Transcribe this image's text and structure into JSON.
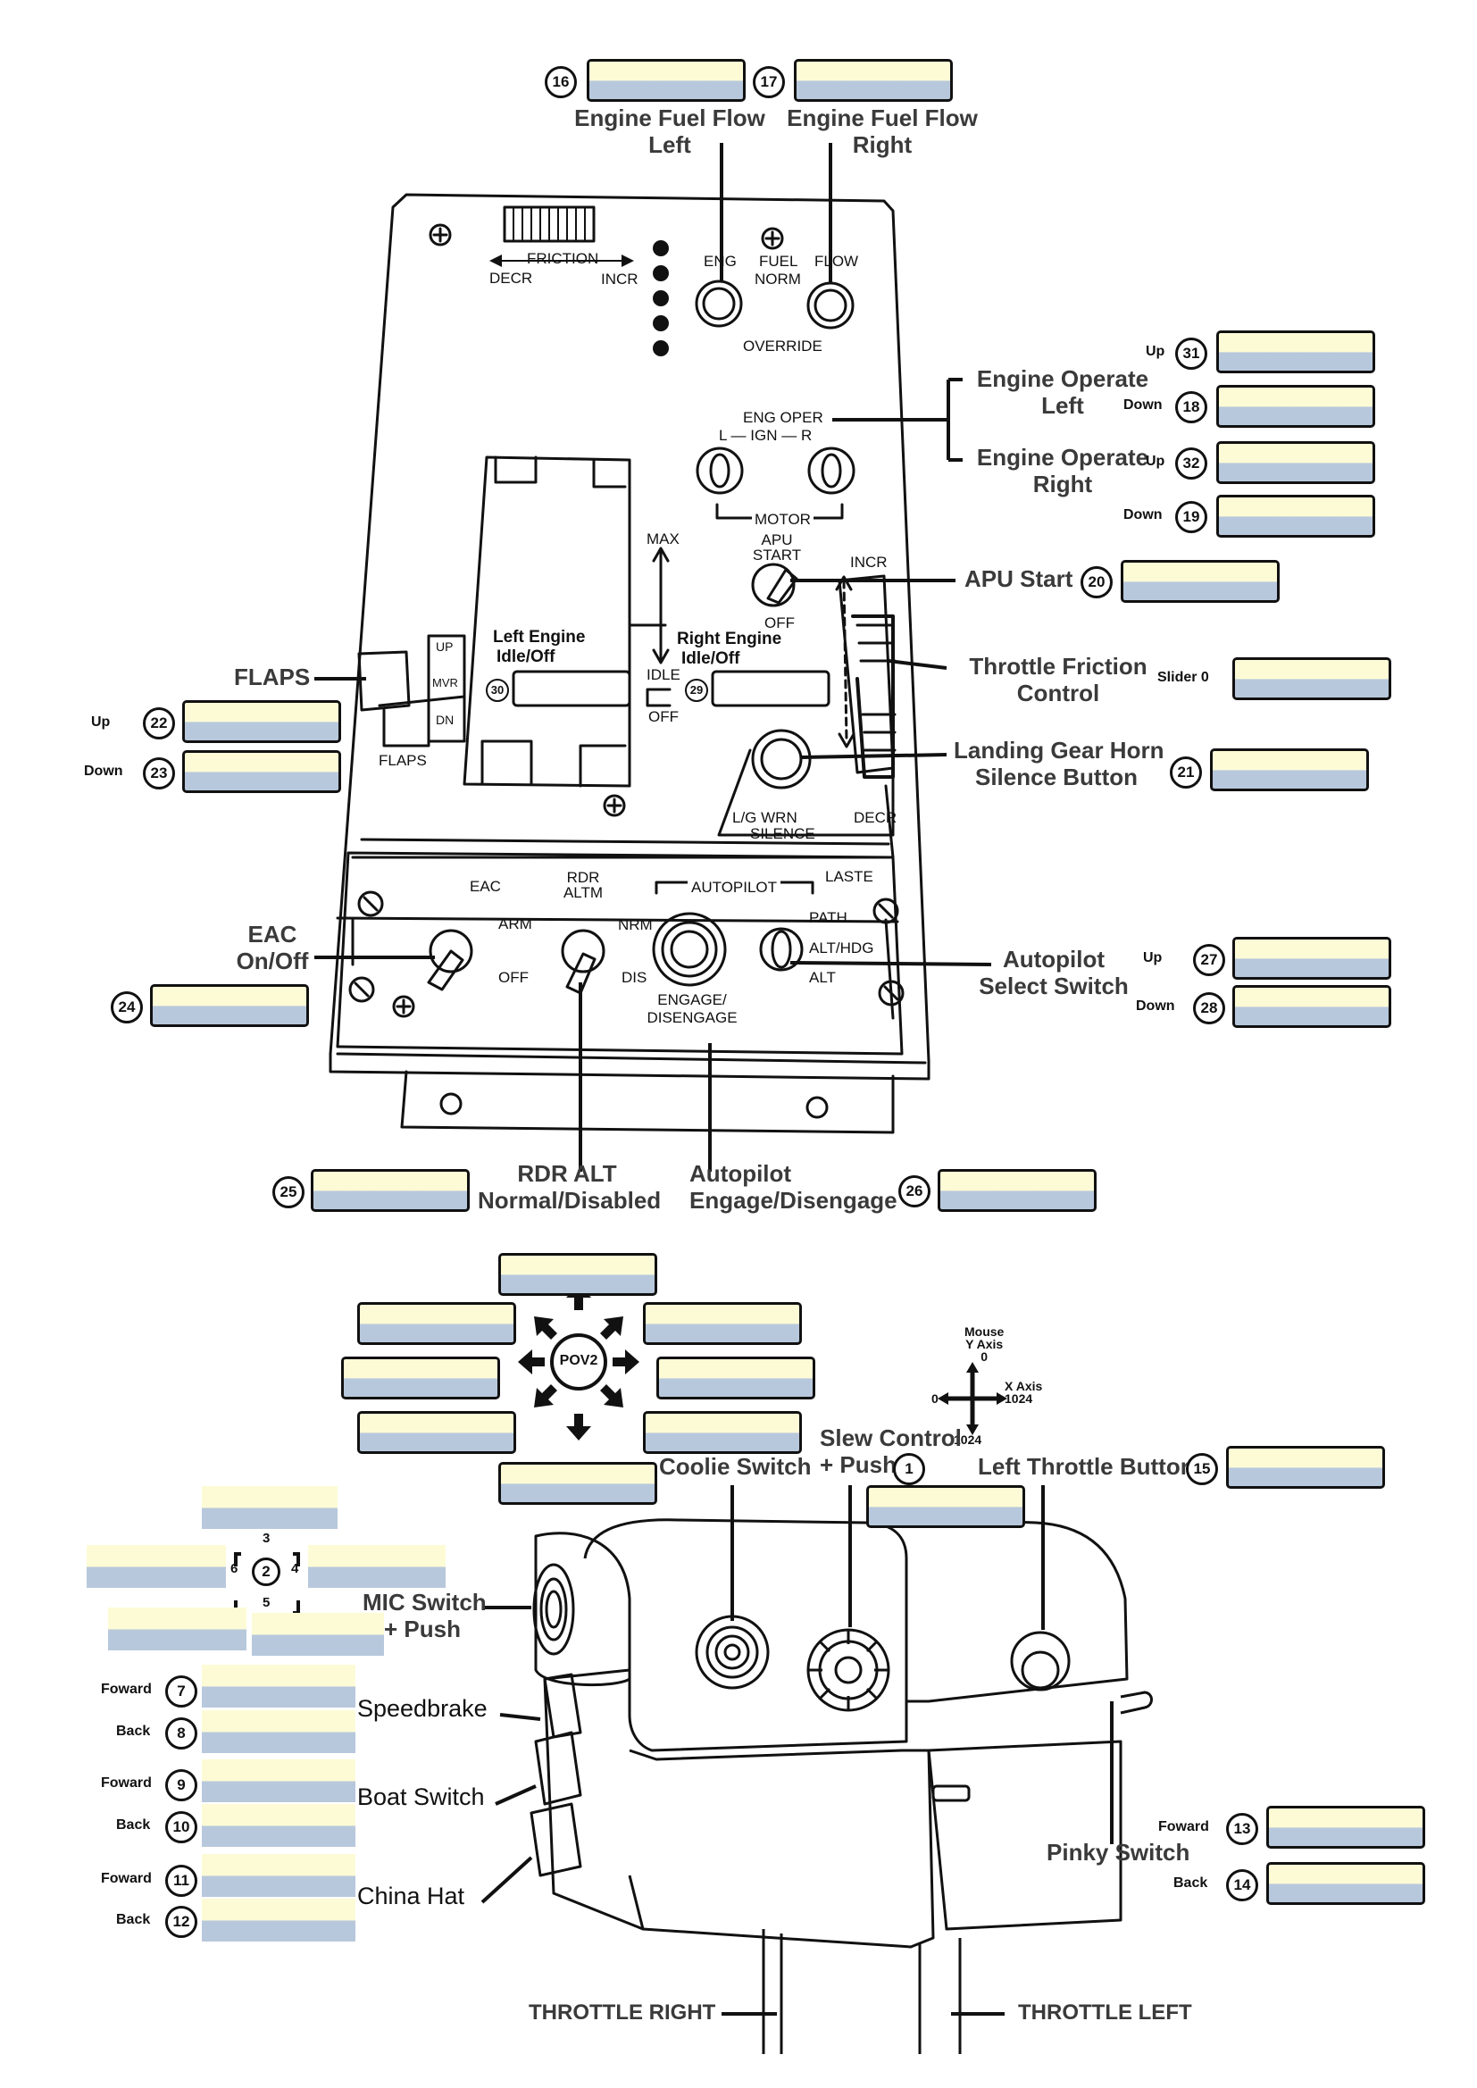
{
  "upper_panel": {
    "labels": {
      "engine_fuel_flow_left": [
        "Engine Fuel Flow",
        "Left"
      ],
      "engine_fuel_flow_right": [
        "Engine Fuel Flow",
        "Right"
      ],
      "engine_operate_left": [
        "Engine Operate",
        "Left"
      ],
      "engine_operate_right": [
        "Engine Operate",
        "Right"
      ],
      "apu_start": "APU Start",
      "throttle_friction": [
        "Throttle Friction",
        "Control"
      ],
      "landing_gear_horn": [
        "Landing Gear Horn",
        "Silence Button"
      ],
      "flaps": "FLAPS",
      "eac": [
        "EAC",
        "On/Off"
      ],
      "autopilot_select": [
        "Autopilot",
        "Select Switch"
      ],
      "rdr_alt": [
        "RDR ALT",
        "Normal/Disabled"
      ],
      "autopilot_engage": [
        "Autopilot",
        "Engage/Disengage"
      ],
      "left_engine_idle": [
        "Left Engine",
        "Idle/Off"
      ],
      "right_engine_idle": [
        "Right Engine",
        "Idle/Off"
      ]
    },
    "panel_text": {
      "friction": "FRICTION",
      "decr": "DECR",
      "incr": "INCR",
      "eng": "ENG",
      "eng_l": "L",
      "fuel": "FUEL",
      "norm": "NORM",
      "flow": "FLOW",
      "flow_r": "R",
      "override": "OVERRIDE",
      "eng_oper": "ENG OPER",
      "ign": "L — IGN — R",
      "norm_vertical": "NORM",
      "motor": "MOTOR",
      "max": "MAX",
      "idle": "IDLE",
      "off": "OFF",
      "apu_start": "APU START",
      "apu_off": "OFF",
      "incr_right": "INCR",
      "flaps_up": "UP",
      "flaps_mvr": "MVR",
      "flaps_dn": "DN",
      "flaps": "FLAPS",
      "lg_silence": "L/G   WRN",
      "silence": "SILENCE",
      "decr_right": "DECR",
      "eac": "EAC",
      "arm": "ARM",
      "eac_off": "OFF",
      "rdr_altm": "RDR ALTM",
      "autopilot": "AUTOPILOT",
      "laste": "LASTE",
      "nrm": "NRM",
      "dis": "DIS",
      "engage": "ENGAGE/ DISENGAGE",
      "path": "PATH",
      "alt_hdg": "ALT/HDG",
      "alt": "ALT"
    },
    "bindings": [
      {
        "num": "16",
        "dir": ""
      },
      {
        "num": "17",
        "dir": ""
      },
      {
        "num": "31",
        "dir": "Up"
      },
      {
        "num": "18",
        "dir": "Down"
      },
      {
        "num": "32",
        "dir": "Up"
      },
      {
        "num": "19",
        "dir": "Down"
      },
      {
        "num": "20",
        "dir": ""
      },
      {
        "num": "",
        "dir": "Slider 0"
      },
      {
        "num": "21",
        "dir": ""
      },
      {
        "num": "22",
        "dir": "Up"
      },
      {
        "num": "23",
        "dir": "Down"
      },
      {
        "num": "24",
        "dir": ""
      },
      {
        "num": "27",
        "dir": "Up"
      },
      {
        "num": "28",
        "dir": "Down"
      },
      {
        "num": "25",
        "dir": ""
      },
      {
        "num": "26",
        "dir": ""
      },
      {
        "num": "30",
        "dir": ""
      },
      {
        "num": "29",
        "dir": ""
      }
    ]
  },
  "lower_panel": {
    "pov_label": "POV2",
    "mouse_axes": {
      "mouse": "Mouse",
      "y_axis": "Y Axis",
      "y_zero": "0",
      "x_axis": "X Axis",
      "x_max": "1024",
      "x_zero": "0",
      "y_max": "1024"
    },
    "labels": {
      "coolie": "Coolie Switch",
      "slew": [
        "Slew Control",
        "+ Push"
      ],
      "left_throttle_button": "Left Throttle Button",
      "mic": [
        "MIC Switch",
        "+ Push"
      ],
      "speedbrake": "Speedbrake",
      "boat": "Boat Switch",
      "china": "China Hat",
      "pinky": "Pinky Switch",
      "throttle_right": "THROTTLE RIGHT",
      "throttle_left": "THROTTLE LEFT"
    },
    "mic_hat": {
      "center": "2",
      "up": "3",
      "down": "5",
      "left": "6",
      "right": "4"
    },
    "bindings": [
      {
        "num": "1",
        "dir": ""
      },
      {
        "num": "15",
        "dir": ""
      },
      {
        "num": "7",
        "dir": "Foward"
      },
      {
        "num": "8",
        "dir": "Back"
      },
      {
        "num": "9",
        "dir": "Foward"
      },
      {
        "num": "10",
        "dir": "Back"
      },
      {
        "num": "11",
        "dir": "Foward"
      },
      {
        "num": "12",
        "dir": "Back"
      },
      {
        "num": "13",
        "dir": "Foward"
      },
      {
        "num": "14",
        "dir": "Back"
      }
    ]
  }
}
